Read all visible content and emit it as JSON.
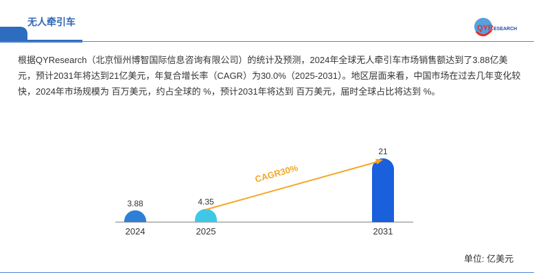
{
  "header": {
    "title": "无人牵引车",
    "logo_text": "QYRESEARCH"
  },
  "description": "根据QYResearch（北京恒州博智国际信息咨询有限公司）的统计及预测，2024年全球无人牵引车市场销售额达到了3.88亿美元，预计2031年将达到21亿美元，年复合增长率（CAGR）为30.0%（2025-2031）。地区层面来看，中国市场在过去几年变化较快，2024年市场规模为 百万美元，约占全球的 %，预计2031年将达到 百万美元，届时全球占比将达到 %。",
  "unit_label": "单位: 亿美元",
  "chart_data": {
    "type": "bar",
    "categories": [
      "2024",
      "2025",
      "2031"
    ],
    "values": [
      3.88,
      4.35,
      21
    ],
    "data_labels": [
      "3.88",
      "4.35",
      "21"
    ],
    "colors": [
      "#2e7fd6",
      "#3fc8e6",
      "#1a5fdc"
    ],
    "annotation": {
      "text": "CAGR30%",
      "from": "2025",
      "to": "2031",
      "color": "#f5a623"
    },
    "xlabel": "",
    "ylabel": "",
    "grid": false
  }
}
